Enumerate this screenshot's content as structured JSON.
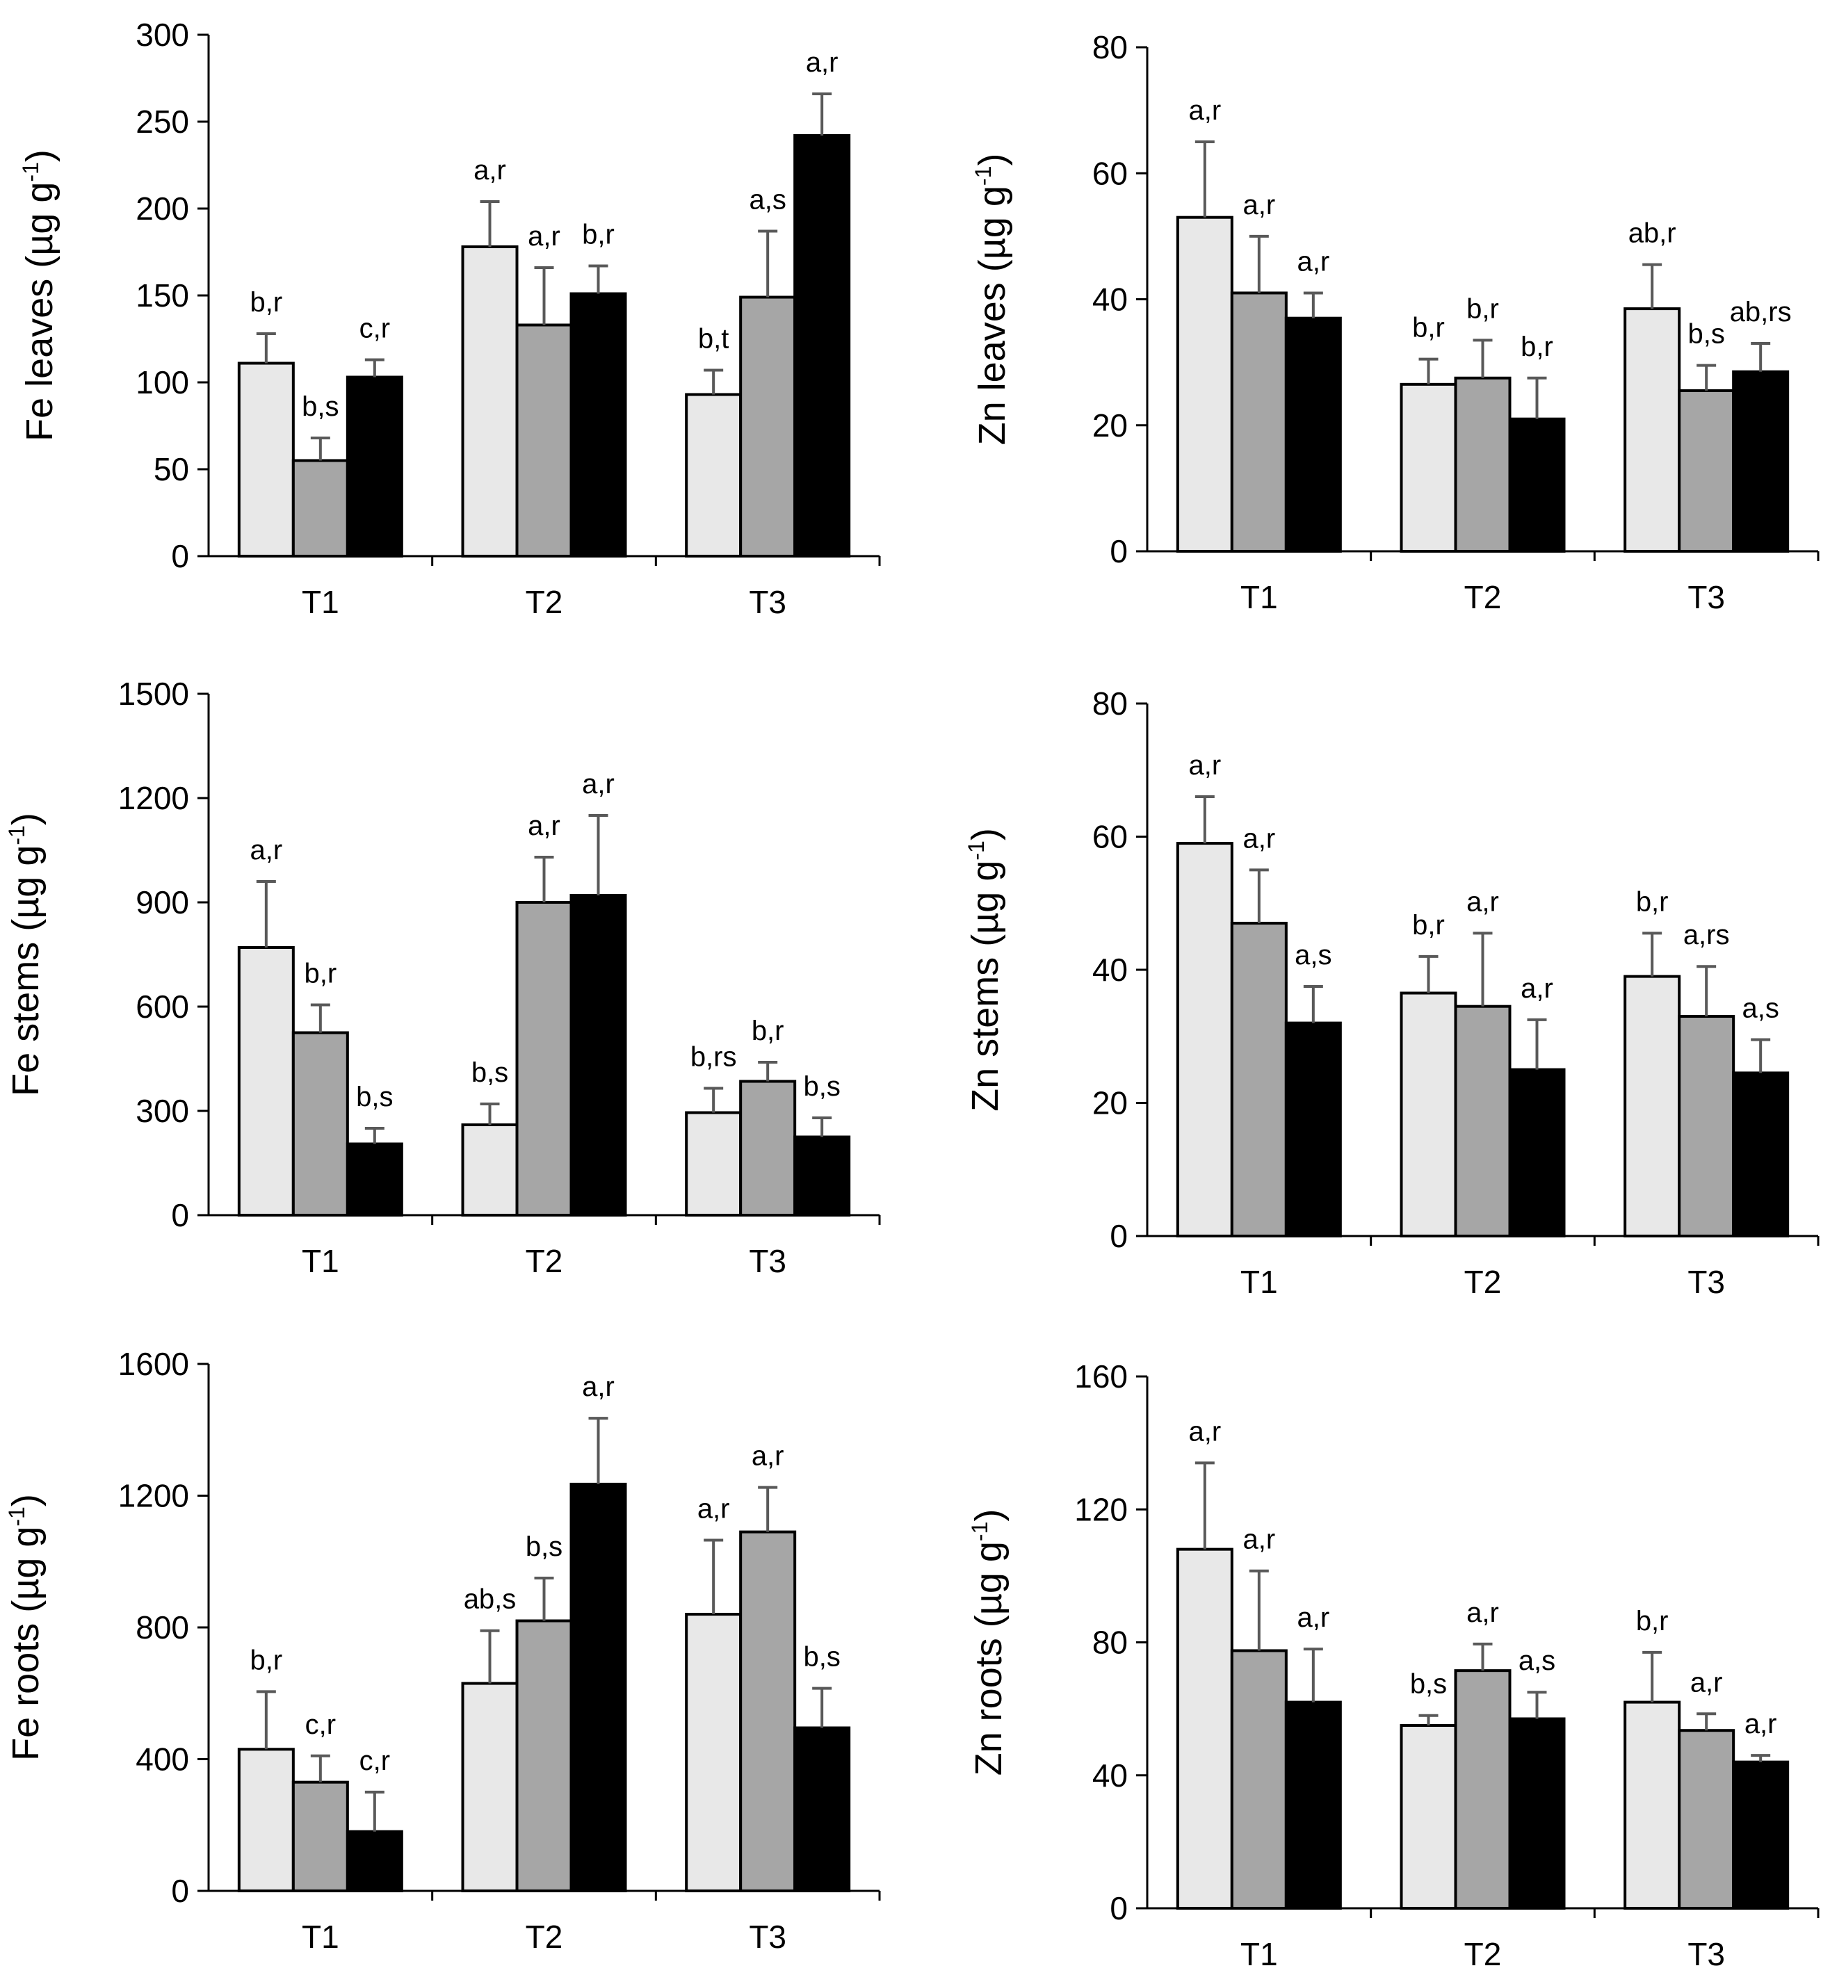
{
  "colors": {
    "series": [
      "#e8e8e8",
      "#a6a6a6",
      "#000000"
    ],
    "axis": "#000000",
    "error_bar": "#595959"
  },
  "chart_data": [
    {
      "type": "bar",
      "title": "",
      "xlabel": "",
      "ylabel": "Fe leaves (µg g",
      "ylabel_sup": "-1",
      "ylabel_end": ")",
      "ylim": [
        0,
        300
      ],
      "yticks": [
        "0",
        "50",
        "100",
        "150",
        "200",
        "250",
        "300"
      ],
      "categories": [
        "T1",
        "T2",
        "T3"
      ],
      "series": [
        {
          "name": "series 1",
          "values": [
            111,
            178,
            93
          ],
          "errors": [
            17,
            26,
            14
          ],
          "labels": [
            "b,r",
            "a,r",
            "b,t"
          ]
        },
        {
          "name": "series 2",
          "values": [
            55,
            133,
            149
          ],
          "errors": [
            13,
            33,
            38
          ],
          "labels": [
            "b,s",
            "a,r",
            "a,s"
          ]
        },
        {
          "name": "series 3",
          "values": [
            103,
            151,
            242
          ],
          "errors": [
            10,
            16,
            24
          ],
          "labels": [
            "c,r",
            "b,r",
            "a,r"
          ]
        }
      ]
    },
    {
      "type": "bar",
      "title": "",
      "xlabel": "",
      "ylabel": "Zn leaves (µg g",
      "ylabel_sup": "-1",
      "ylabel_end": ")",
      "ylim": [
        0,
        80
      ],
      "yticks": [
        "0",
        "20",
        "40",
        "60",
        "80"
      ],
      "categories": [
        "T1",
        "T2",
        "T3"
      ],
      "series": [
        {
          "name": "series 1",
          "values": [
            53,
            26.5,
            38.5
          ],
          "errors": [
            12,
            4,
            7
          ],
          "labels": [
            "a,r",
            "b,r",
            "ab,r"
          ]
        },
        {
          "name": "series 2",
          "values": [
            41,
            27.5,
            25.5
          ],
          "errors": [
            9,
            6,
            4
          ],
          "labels": [
            "a,r",
            "b,r",
            "b,s"
          ]
        },
        {
          "name": "series 3",
          "values": [
            37,
            21,
            28.5
          ],
          "errors": [
            4,
            6.5,
            4.5
          ],
          "labels": [
            "a,r",
            "b,r",
            "ab,rs"
          ]
        }
      ]
    },
    {
      "type": "bar",
      "title": "",
      "xlabel": "",
      "ylabel": "Fe stems (µg g",
      "ylabel_sup": "-1",
      "ylabel_end": ")",
      "ylim": [
        0,
        1500
      ],
      "yticks": [
        "0",
        "300",
        "600",
        "900",
        "1200",
        "1500"
      ],
      "categories": [
        "T1",
        "T2",
        "T3"
      ],
      "series": [
        {
          "name": "series 1",
          "values": [
            770,
            260,
            295
          ],
          "errors": [
            190,
            60,
            70
          ],
          "labels": [
            "a,r",
            "b,s",
            "b,rs"
          ]
        },
        {
          "name": "series 2",
          "values": [
            525,
            900,
            385
          ],
          "errors": [
            80,
            130,
            55
          ],
          "labels": [
            "b,r",
            "a,r",
            "b,r"
          ]
        },
        {
          "name": "series 3",
          "values": [
            205,
            920,
            225
          ],
          "errors": [
            45,
            230,
            55
          ],
          "labels": [
            "b,s",
            "a,r",
            "b,s"
          ]
        }
      ]
    },
    {
      "type": "bar",
      "title": "",
      "xlabel": "",
      "ylabel": "Zn stems (µg g",
      "ylabel_sup": "-1",
      "ylabel_end": ")",
      "ylim": [
        0,
        80
      ],
      "yticks": [
        "0",
        "20",
        "40",
        "60",
        "80"
      ],
      "categories": [
        "T1",
        "T2",
        "T3"
      ],
      "series": [
        {
          "name": "series 1",
          "values": [
            59,
            36.5,
            39
          ],
          "errors": [
            7,
            5.5,
            6.5
          ],
          "labels": [
            "a,r",
            "b,r",
            "b,r"
          ]
        },
        {
          "name": "series 2",
          "values": [
            47,
            34.5,
            33
          ],
          "errors": [
            8,
            11,
            7.5
          ],
          "labels": [
            "a,r",
            "a,r",
            "a,rs"
          ]
        },
        {
          "name": "series 3",
          "values": [
            32,
            25,
            24.5
          ],
          "errors": [
            5.5,
            7.5,
            5
          ],
          "labels": [
            "a,s",
            "a,r",
            "a,s"
          ]
        }
      ]
    },
    {
      "type": "bar",
      "title": "",
      "xlabel": "",
      "ylabel": "Fe roots (µg g",
      "ylabel_sup": "-1",
      "ylabel_end": ")",
      "ylim": [
        0,
        1600
      ],
      "yticks": [
        "0",
        "400",
        "800",
        "1200",
        "1600"
      ],
      "categories": [
        "T1",
        "T2",
        "T3"
      ],
      "series": [
        {
          "name": "series 1",
          "values": [
            430,
            630,
            840
          ],
          "errors": [
            175,
            160,
            225
          ],
          "labels": [
            "b,r",
            "ab,s",
            "a,r"
          ]
        },
        {
          "name": "series 2",
          "values": [
            330,
            820,
            1090
          ],
          "errors": [
            80,
            130,
            135
          ],
          "labels": [
            "c,r",
            "b,s",
            "a,r"
          ]
        },
        {
          "name": "series 3",
          "values": [
            180,
            1235,
            495
          ],
          "errors": [
            120,
            200,
            120
          ],
          "labels": [
            "c,r",
            "a,r",
            "b,s"
          ]
        }
      ]
    },
    {
      "type": "bar",
      "title": "",
      "xlabel": "",
      "ylabel": "Zn roots (µg g",
      "ylabel_sup": "-1",
      "ylabel_end": ")",
      "ylim": [
        0,
        160
      ],
      "yticks": [
        "0",
        "40",
        "80",
        "120",
        "160"
      ],
      "categories": [
        "T1",
        "T2",
        "T3"
      ],
      "series": [
        {
          "name": "series 1",
          "values": [
            108,
            55,
            62
          ],
          "errors": [
            26,
            3,
            15
          ],
          "labels": [
            "a,r",
            "b,s",
            "b,r"
          ]
        },
        {
          "name": "series 2",
          "values": [
            77.5,
            71.5,
            53.5
          ],
          "errors": [
            24,
            8,
            5
          ],
          "labels": [
            "a,r",
            "a,r",
            "a,r"
          ]
        },
        {
          "name": "series 3",
          "values": [
            62,
            57,
            44
          ],
          "errors": [
            16,
            8,
            2
          ],
          "labels": [
            "a,r",
            "a,s",
            "a,r"
          ]
        }
      ]
    }
  ]
}
